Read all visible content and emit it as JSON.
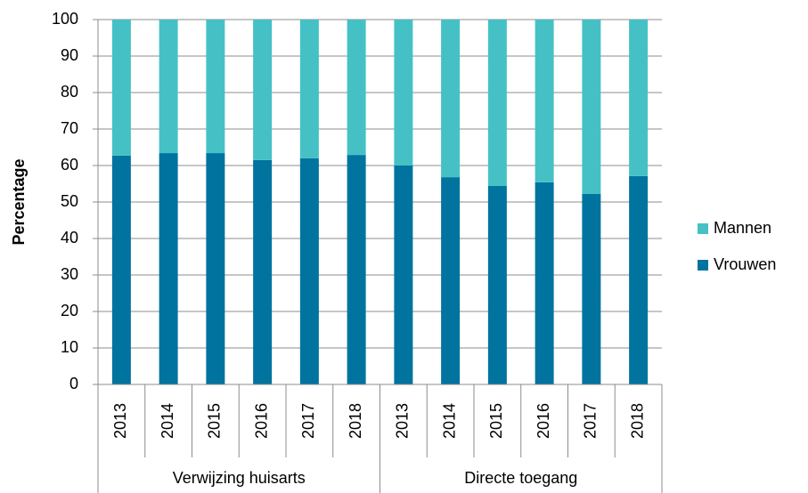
{
  "chart_data": {
    "type": "stacked_bar",
    "y_axis_label": "Percentage",
    "categories": [
      "2013",
      "2014",
      "2015",
      "2016",
      "2017",
      "2018",
      "2013",
      "2014",
      "2015",
      "2016",
      "2017",
      "2018"
    ],
    "groups": [
      "Verwijzing huisarts",
      "Directe toegang"
    ],
    "series": [
      {
        "name": "Vrouwen",
        "color": "#00739f",
        "values": [
          62.7,
          63.4,
          63.4,
          61.5,
          62.0,
          62.9,
          60.0,
          56.8,
          54.4,
          55.4,
          52.2,
          57.1
        ]
      },
      {
        "name": "Mannen",
        "color": "#45c1c6",
        "values": [
          37.3,
          36.6,
          36.6,
          38.5,
          38.0,
          37.1,
          40.0,
          43.2,
          45.6,
          44.6,
          47.8,
          42.9
        ]
      }
    ],
    "ylim": [
      0,
      100
    ],
    "yticks": [
      0,
      10,
      20,
      30,
      40,
      50,
      60,
      70,
      80,
      90,
      100
    ],
    "grid": true,
    "legend": "right"
  }
}
